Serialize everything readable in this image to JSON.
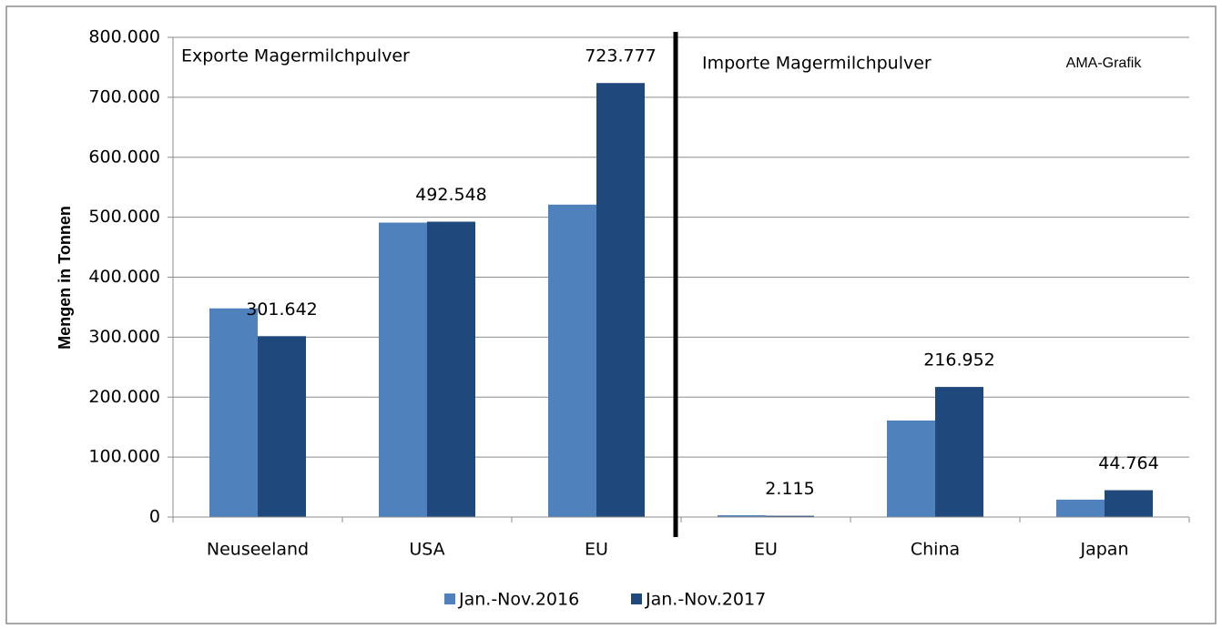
{
  "chart_data": {
    "type": "bar",
    "y_label": "Mengen in Tonnen",
    "annotations": [
      "Exporte Magermilchpulver",
      "Importe Magermilchpulver",
      "AMA-Grafik"
    ],
    "categories": [
      "Neuseeland",
      "USA",
      "EU",
      "EU",
      "China",
      "Japan"
    ],
    "series": [
      {
        "name": "Jan.-Nov.2016",
        "color": "#4f81bd",
        "values": [
          348000,
          491000,
          521000,
          3000,
          161000,
          29000
        ]
      },
      {
        "name": "Jan.-Nov.2017",
        "color": "#1f497d",
        "values": [
          301642,
          492548,
          723777,
          2115,
          216952,
          44764
        ],
        "value_labels": [
          "301.642",
          "492.548",
          "723.777",
          "2.115",
          "216.952",
          "44.764"
        ]
      }
    ],
    "ylim": [
      0,
      800000
    ],
    "yticks": [
      0,
      {
        "value": 100000,
        "label": "100.000"
      },
      {
        "value": 200000,
        "label": "200.000"
      },
      {
        "value": 300000,
        "label": "300.000"
      },
      {
        "value": 400000,
        "label": "400.000"
      },
      {
        "value": 500000,
        "label": "500.000"
      },
      {
        "value": 600000,
        "label": "600.000"
      },
      {
        "value": 700000,
        "label": "700.000"
      },
      {
        "value": 800000,
        "label": "800.000"
      }
    ],
    "grid": true,
    "legend": "bottom"
  }
}
